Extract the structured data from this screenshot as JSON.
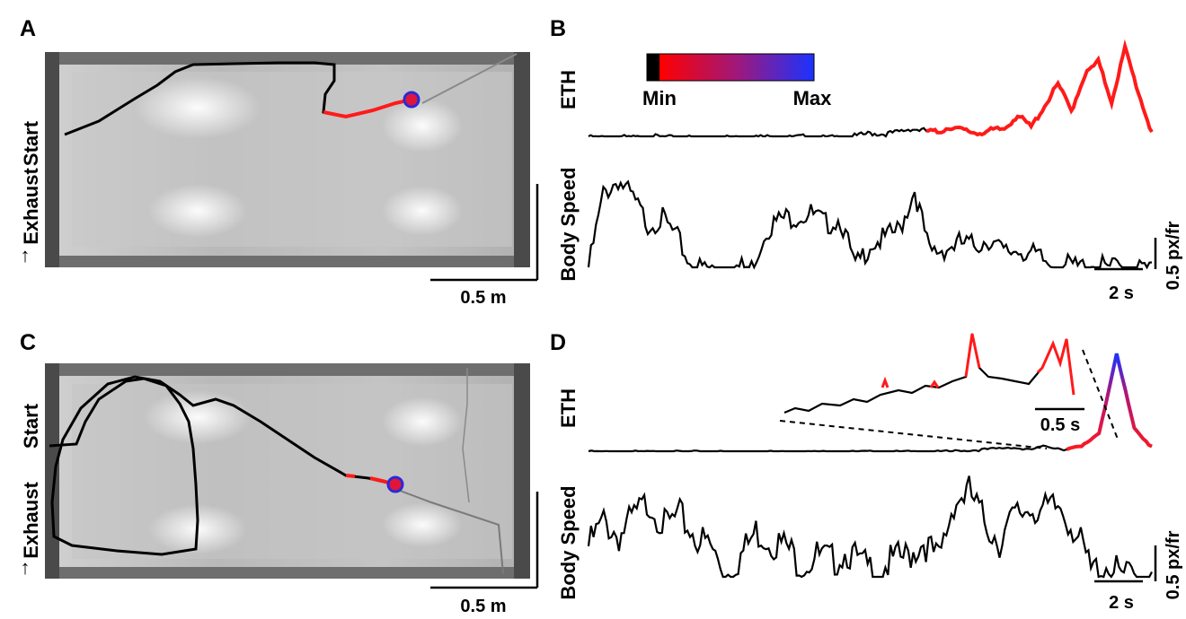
{
  "panels": {
    "A": {
      "letter": "A",
      "side_label_start": "Start",
      "side_label_exhaust": "Exhaust",
      "scalebar_label": "0.5 m",
      "arrow_glyph": "↑"
    },
    "B": {
      "letter": "B",
      "eth_label": "ETH",
      "speed_label": "Body Speed",
      "colorbar_min": "Min",
      "colorbar_max": "Max",
      "time_scale": "2 s",
      "speed_scale": "0.5 px/fr"
    },
    "C": {
      "letter": "C",
      "side_label_start": "Start",
      "side_label_exhaust": "Exhaust",
      "scalebar_label": "0.5 m",
      "arrow_glyph": "↑"
    },
    "D": {
      "letter": "D",
      "eth_label": "ETH",
      "speed_label": "Body Speed",
      "inset_time_scale": "0.5 s",
      "time_scale": "2 s",
      "speed_scale": "0.5 px/fr"
    }
  },
  "colors": {
    "trace": "#000000",
    "eth_low": "#ff1a1a",
    "eth_high": "#1a33ff",
    "marker_fill": "#e0153a",
    "marker_stroke": "#2a2ad8"
  },
  "chart_data": [
    {
      "type": "line",
      "panel": "B",
      "series": [
        {
          "name": "ETH",
          "values": [
            0,
            0,
            0.01,
            0,
            0,
            0.01,
            0,
            0,
            0,
            0.01,
            0,
            0,
            0,
            0.01,
            0,
            0,
            0.01,
            0,
            0,
            0,
            0.02,
            0.05,
            0.04,
            0.06,
            0.1,
            0.08,
            0.06,
            0.12,
            0.08,
            0.05,
            0.08,
            0.1,
            0.25,
            0.12,
            0.35,
            0.6,
            0.3,
            0.7,
            0.85,
            0.4,
            1.0,
            0.5,
            0.05
          ]
        },
        {
          "name": "Body Speed",
          "values": [
            0.05,
            0.8,
            0.95,
            0.75,
            0.5,
            0.55,
            0.35,
            0.05,
            0.05,
            0.03,
            0.06,
            0.05,
            0.45,
            0.55,
            0.58,
            0.6,
            0.5,
            0.55,
            0.05,
            0.3,
            0.35,
            0.45,
            0.85,
            0.2,
            0.25,
            0.3,
            0.28,
            0.35,
            0.2,
            0.25,
            0.18,
            0.1,
            0.08,
            0.06,
            0.08,
            0.05,
            0.06,
            0.04,
            0.05
          ]
        }
      ]
    },
    {
      "type": "line",
      "panel": "D",
      "series": [
        {
          "name": "ETH",
          "values": [
            0,
            0,
            0,
            0,
            0,
            0,
            0,
            0,
            0,
            0,
            0,
            0,
            0,
            0,
            0,
            0,
            0,
            0,
            0,
            0,
            0,
            0.01,
            0.02,
            0.03,
            0.05,
            0.02,
            0.06,
            0.03,
            0.05,
            0.2,
            1.0,
            0.25,
            0.05
          ]
        },
        {
          "name": "Body Speed",
          "values": [
            0.4,
            0.65,
            0.5,
            0.7,
            0.85,
            0.6,
            0.7,
            0.5,
            0.4,
            0.1,
            0.3,
            0.55,
            0.45,
            0.4,
            0.2,
            0.3,
            0.25,
            0.35,
            0.2,
            0.15,
            0.25,
            0.3,
            0.45,
            0.25,
            0.85,
            0.95,
            0.65,
            0.45,
            0.7,
            0.8,
            0.75,
            0.8,
            0.55,
            0.15,
            0.2,
            0.1,
            0.08,
            0.05
          ]
        }
      ]
    }
  ]
}
